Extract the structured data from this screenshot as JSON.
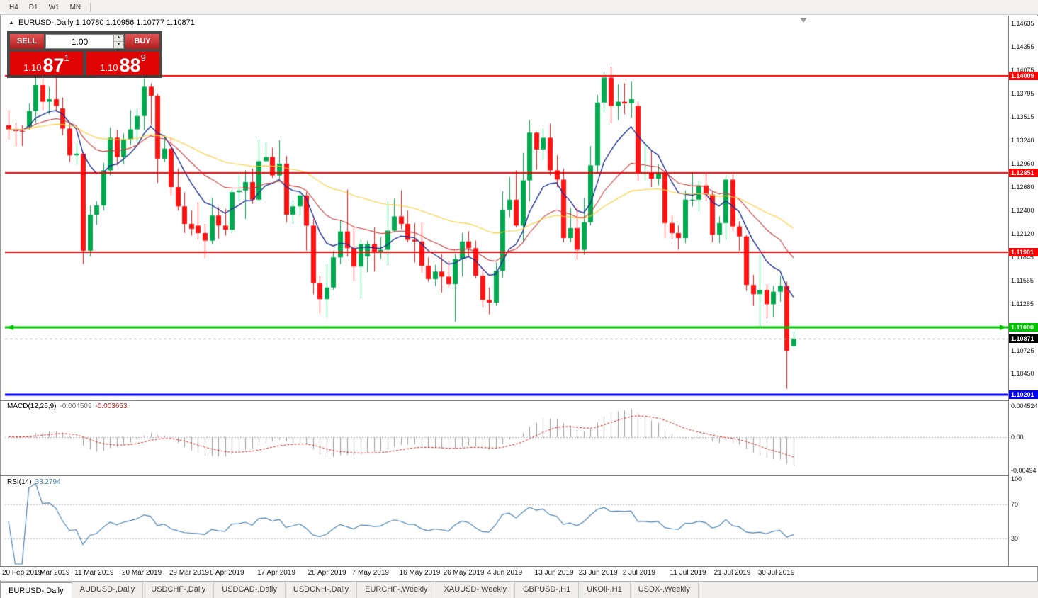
{
  "toolbar": {
    "timeframes": [
      "H4",
      "D1",
      "W1",
      "MN"
    ]
  },
  "chart_header": {
    "toggle_icon": "▲",
    "title": "EURUSD-,Daily  1.10780 1.10956 1.10777 1.10871"
  },
  "trade_panel": {
    "sell_label": "SELL",
    "buy_label": "BUY",
    "volume": "1.00",
    "sell_price": {
      "prefix": "1.10",
      "big": "87",
      "sup": "1"
    },
    "buy_price": {
      "prefix": "1.10",
      "big": "88",
      "sup": "9"
    }
  },
  "colors": {
    "candle_up": "#00a94f",
    "candle_down": "#ff1414",
    "bid_line": "#a6a6a6",
    "accent_red": "#e00404"
  },
  "chart_data": {
    "type": "candlestick",
    "symbol": "EURUSD-",
    "timeframe": "Daily",
    "ohlc_display": "1.10780 1.10956 1.10777 1.10871",
    "price_range": {
      "top": 1.14713,
      "bottom": 1.1014
    },
    "price_axis_ticks": [
      "1.14635",
      "1.14355",
      "1.14075",
      "1.13795",
      "1.13515",
      "1.13240",
      "1.12960",
      "1.12680",
      "1.12400",
      "1.12120",
      "1.11845",
      "1.11565",
      "1.11285",
      "1.10725",
      "1.10450"
    ],
    "candles": [
      [
        1.1342,
        1.136,
        1.1325,
        1.1337
      ],
      [
        1.1337,
        1.1345,
        1.1316,
        1.1335
      ],
      [
        1.1335,
        1.1342,
        1.1317,
        1.1334
      ],
      [
        1.134,
        1.1368,
        1.1336,
        1.1359
      ],
      [
        1.1359,
        1.1403,
        1.1345,
        1.139
      ],
      [
        1.139,
        1.1404,
        1.136,
        1.137
      ],
      [
        1.137,
        1.1388,
        1.1355,
        1.1373
      ],
      [
        1.1373,
        1.1399,
        1.1358,
        1.1365
      ],
      [
        1.1362,
        1.1375,
        1.133,
        1.1338
      ],
      [
        1.1338,
        1.1344,
        1.1298,
        1.1306
      ],
      [
        1.1306,
        1.1321,
        1.1295,
        1.1308
      ],
      [
        1.1308,
        1.131,
        1.1176,
        1.1192
      ],
      [
        1.1192,
        1.1246,
        1.1185,
        1.1235
      ],
      [
        1.1235,
        1.1251,
        1.1223,
        1.1246
      ],
      [
        1.1246,
        1.1297,
        1.124,
        1.1288
      ],
      [
        1.1288,
        1.1339,
        1.1282,
        1.1327
      ],
      [
        1.1327,
        1.1336,
        1.1294,
        1.1304
      ],
      [
        1.1304,
        1.1332,
        1.1295,
        1.1325
      ],
      [
        1.1325,
        1.136,
        1.1318,
        1.1337
      ],
      [
        1.1337,
        1.1362,
        1.1322,
        1.1353
      ],
      [
        1.1353,
        1.1398,
        1.1336,
        1.1388
      ],
      [
        1.1388,
        1.1392,
        1.1343,
        1.1377
      ],
      [
        1.1377,
        1.138,
        1.1273,
        1.1302
      ],
      [
        1.1302,
        1.133,
        1.1298,
        1.1314
      ],
      [
        1.1314,
        1.1327,
        1.1258,
        1.1268
      ],
      [
        1.1268,
        1.129,
        1.124,
        1.1245
      ],
      [
        1.1245,
        1.1262,
        1.1213,
        1.1224
      ],
      [
        1.1224,
        1.124,
        1.121,
        1.1218
      ],
      [
        1.1222,
        1.125,
        1.1205,
        1.1213
      ],
      [
        1.1213,
        1.1224,
        1.1183,
        1.1204
      ],
      [
        1.1204,
        1.1255,
        1.12,
        1.1234
      ],
      [
        1.1234,
        1.1244,
        1.1206,
        1.1222
      ],
      [
        1.1222,
        1.1242,
        1.121,
        1.1217
      ],
      [
        1.1217,
        1.1265,
        1.1213,
        1.1262
      ],
      [
        1.1262,
        1.1285,
        1.1251,
        1.1264
      ],
      [
        1.1264,
        1.1288,
        1.123,
        1.1274
      ],
      [
        1.1274,
        1.129,
        1.1248,
        1.1253
      ],
      [
        1.1253,
        1.1325,
        1.1251,
        1.1299
      ],
      [
        1.1299,
        1.1322,
        1.1298,
        1.1304
      ],
      [
        1.1304,
        1.1315,
        1.1279,
        1.1282
      ],
      [
        1.1282,
        1.1324,
        1.1278,
        1.1296
      ],
      [
        1.1296,
        1.1305,
        1.1226,
        1.1235
      ],
      [
        1.1235,
        1.1252,
        1.1224,
        1.1245
      ],
      [
        1.1245,
        1.1264,
        1.1234,
        1.1258
      ],
      [
        1.1258,
        1.1262,
        1.1192,
        1.1222
      ],
      [
        1.1222,
        1.123,
        1.114,
        1.1153
      ],
      [
        1.1153,
        1.1162,
        1.1117,
        1.1134
      ],
      [
        1.1134,
        1.1176,
        1.1112,
        1.1148
      ],
      [
        1.1148,
        1.1192,
        1.1145,
        1.1184
      ],
      [
        1.1184,
        1.1229,
        1.1176,
        1.1215
      ],
      [
        1.1215,
        1.1265,
        1.1185,
        1.1195
      ],
      [
        1.1195,
        1.1219,
        1.1155,
        1.1173
      ],
      [
        1.1173,
        1.1205,
        1.1135,
        1.12
      ],
      [
        1.1185,
        1.1204,
        1.1166,
        1.12
      ],
      [
        1.12,
        1.122,
        1.1167,
        1.119
      ],
      [
        1.119,
        1.1208,
        1.1182,
        1.1193
      ],
      [
        1.1193,
        1.1251,
        1.1174,
        1.1216
      ],
      [
        1.1216,
        1.1254,
        1.1214,
        1.1233
      ],
      [
        1.1233,
        1.1264,
        1.1218,
        1.1224
      ],
      [
        1.1224,
        1.124,
        1.1202,
        1.1205
      ],
      [
        1.1205,
        1.1225,
        1.1178,
        1.1203
      ],
      [
        1.1203,
        1.1226,
        1.1166,
        1.1174
      ],
      [
        1.1174,
        1.1184,
        1.1155,
        1.1158
      ],
      [
        1.1158,
        1.1175,
        1.115,
        1.1167
      ],
      [
        1.1167,
        1.1188,
        1.1142,
        1.1161
      ],
      [
        1.1161,
        1.118,
        1.1148,
        1.1152
      ],
      [
        1.1152,
        1.1188,
        1.1107,
        1.1182
      ],
      [
        1.1182,
        1.1213,
        1.1161,
        1.1203
      ],
      [
        1.1203,
        1.1215,
        1.1185,
        1.1195
      ],
      [
        1.1195,
        1.1204,
        1.1159,
        1.1162
      ],
      [
        1.1162,
        1.1172,
        1.1125,
        1.1133
      ],
      [
        1.1133,
        1.1148,
        1.1116,
        1.113
      ],
      [
        1.113,
        1.1178,
        1.1126,
        1.1168
      ],
      [
        1.1168,
        1.1263,
        1.116,
        1.1241
      ],
      [
        1.1241,
        1.128,
        1.1232,
        1.1253
      ],
      [
        1.1253,
        1.1288,
        1.122,
        1.1222
      ],
      [
        1.1222,
        1.1309,
        1.1202,
        1.1276
      ],
      [
        1.1276,
        1.1348,
        1.1251,
        1.1333
      ],
      [
        1.1333,
        1.1334,
        1.1289,
        1.1313
      ],
      [
        1.1313,
        1.1338,
        1.1301,
        1.1327
      ],
      [
        1.1327,
        1.1344,
        1.1282,
        1.1288
      ],
      [
        1.1288,
        1.1306,
        1.1268,
        1.1277
      ],
      [
        1.1277,
        1.129,
        1.1202,
        1.1207
      ],
      [
        1.1207,
        1.1243,
        1.1202,
        1.1219
      ],
      [
        1.1219,
        1.1244,
        1.1181,
        1.1193
      ],
      [
        1.1193,
        1.1255,
        1.1187,
        1.1226
      ],
      [
        1.1226,
        1.1317,
        1.1222,
        1.1294
      ],
      [
        1.1294,
        1.1378,
        1.1285,
        1.1369
      ],
      [
        1.1369,
        1.1406,
        1.1358,
        1.1399
      ],
      [
        1.1399,
        1.1412,
        1.1344,
        1.1365
      ],
      [
        1.1365,
        1.1391,
        1.1348,
        1.137
      ],
      [
        1.137,
        1.1392,
        1.1355,
        1.1368
      ],
      [
        1.1368,
        1.1394,
        1.1351,
        1.1373
      ],
      [
        1.1365,
        1.137,
        1.1275,
        1.1285
      ],
      [
        1.1285,
        1.1322,
        1.1275,
        1.1285
      ],
      [
        1.1285,
        1.1312,
        1.1268,
        1.1278
      ],
      [
        1.1278,
        1.1295,
        1.127,
        1.1284
      ],
      [
        1.1284,
        1.1288,
        1.1207,
        1.1225
      ],
      [
        1.1225,
        1.1234,
        1.1206,
        1.1213
      ],
      [
        1.1213,
        1.1222,
        1.1193,
        1.1207
      ],
      [
        1.1207,
        1.1264,
        1.1201,
        1.1253
      ],
      [
        1.1253,
        1.1286,
        1.1245,
        1.1253
      ],
      [
        1.1253,
        1.1275,
        1.1239,
        1.127
      ],
      [
        1.127,
        1.1285,
        1.1251,
        1.1259
      ],
      [
        1.1259,
        1.1263,
        1.1202,
        1.1211
      ],
      [
        1.1211,
        1.1233,
        1.1201,
        1.1225
      ],
      [
        1.1225,
        1.1282,
        1.1205,
        1.1277
      ],
      [
        1.1277,
        1.1283,
        1.1215,
        1.1221
      ],
      [
        1.1221,
        1.1227,
        1.1192,
        1.1209
      ],
      [
        1.1209,
        1.1211,
        1.1144,
        1.1151
      ],
      [
        1.1151,
        1.1163,
        1.1126,
        1.114
      ],
      [
        1.114,
        1.1187,
        1.1101,
        1.1145
      ],
      [
        1.1145,
        1.1152,
        1.1111,
        1.1128
      ],
      [
        1.1128,
        1.115,
        1.1112,
        1.1143
      ],
      [
        1.1143,
        1.1162,
        1.1131,
        1.115
      ],
      [
        1.115,
        1.1155,
        1.1027,
        1.1072
      ],
      [
        1.1078,
        1.10956,
        1.10777,
        1.10871
      ]
    ],
    "date_ticks": [
      {
        "label": "20 Feb 2019",
        "i": 0
      },
      {
        "label": "1 Mar 2019",
        "i": 7
      },
      {
        "label": "11 Mar 2019",
        "i": 13
      },
      {
        "label": "20 Mar 2019",
        "i": 20
      },
      {
        "label": "29 Mar 2019",
        "i": 27
      },
      {
        "label": "8 Apr 2019",
        "i": 33
      },
      {
        "label": "17 Apr 2019",
        "i": 40
      },
      {
        "label": "28 Apr 2019",
        "i": 47.5
      },
      {
        "label": "7 May 2019",
        "i": 54
      },
      {
        "label": "16 May 2019",
        "i": 61
      },
      {
        "label": "26 May 2019",
        "i": 67.5
      },
      {
        "label": "4 Jun 2019",
        "i": 74
      },
      {
        "label": "13 Jun 2019",
        "i": 81
      },
      {
        "label": "23 Jun 2019",
        "i": 87.5
      },
      {
        "label": "2 Jul 2019",
        "i": 94
      },
      {
        "label": "11 Jul 2019",
        "i": 101
      },
      {
        "label": "21 Jul 2019",
        "i": 107.5
      },
      {
        "label": "30 Jul 2019",
        "i": 114
      }
    ],
    "moving_averages": [
      {
        "period": 9,
        "color": "#1b2f93",
        "width": 1.4
      },
      {
        "period": 21,
        "color": "#c93a3a",
        "width": 1.1
      },
      {
        "period": 50,
        "color": "#ffcc33",
        "width": 1.1
      }
    ],
    "hlines": [
      {
        "price": 1.14009,
        "label": "1.14009",
        "color": "#ff0000",
        "width": 2,
        "arrows": false
      },
      {
        "price": 1.12851,
        "label": "1.12851",
        "color": "#ff0000",
        "width": 2,
        "arrows": false
      },
      {
        "price": 1.11901,
        "label": "1.11901",
        "color": "#ff0000",
        "width": 2,
        "arrows": false
      },
      {
        "price": 1.11,
        "label": "1.11000",
        "color": "#00c400",
        "width": 3,
        "arrows": true
      },
      {
        "price": 1.10201,
        "label": "1.10201",
        "color": "#0000ff",
        "width": 3,
        "arrows": false
      }
    ],
    "current_price": {
      "text": "1.10871",
      "value": 1.10871,
      "label_bg": "#000000"
    },
    "macd": {
      "label": "MACD(12,26,9)",
      "value_main": "-0.004509",
      "value_signal": "-0.003653",
      "fast": 12,
      "slow": 26,
      "signal": 9,
      "view_max": 0.0053,
      "view_min": -0.0056,
      "axis_labels": [
        {
          "text": "0.004524",
          "v": 0.004524
        },
        {
          "text": "0.00",
          "v": 0
        },
        {
          "text": "-0.00494",
          "v": -0.00494
        }
      ],
      "hist_color": "#9e9e9e",
      "signal_color": "#d02020"
    },
    "rsi": {
      "label": "RSI(14)",
      "value_text": "33.2794",
      "period": 14,
      "levels": [
        70,
        30
      ],
      "axis_labels": [
        {
          "text": "100",
          "v": 100
        },
        {
          "text": "70",
          "v": 70
        },
        {
          "text": "30",
          "v": 30
        }
      ],
      "line_color": "#4a82b4"
    }
  },
  "bottom_tabs": [
    {
      "label": "EURUSD-,Daily",
      "active": true
    },
    {
      "label": "AUDUSD-,Daily",
      "active": false
    },
    {
      "label": "USDCHF-,Daily",
      "active": false
    },
    {
      "label": "USDCAD-,Daily",
      "active": false
    },
    {
      "label": "USDCNH-,Daily",
      "active": false
    },
    {
      "label": "EURCHF-,Weekly",
      "active": false
    },
    {
      "label": "XAUUSD-,Weekly",
      "active": false
    },
    {
      "label": "GBPUSD-,H1",
      "active": false
    },
    {
      "label": "UKOil-,H1",
      "active": false
    },
    {
      "label": "USDX-,Weekly",
      "active": false
    }
  ]
}
